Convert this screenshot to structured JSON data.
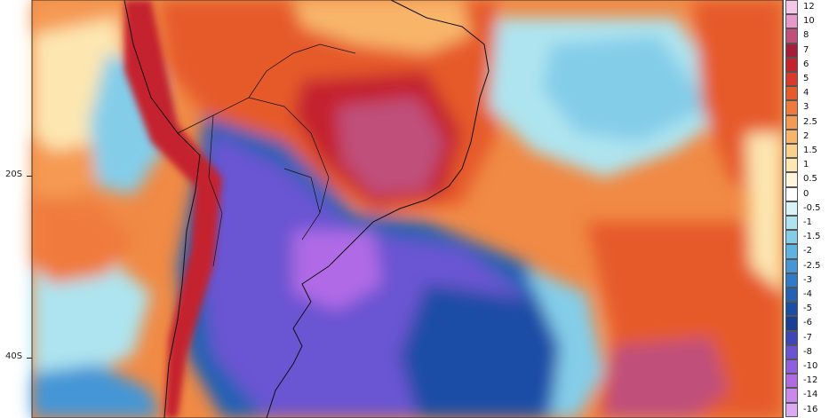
{
  "map": {
    "lat_labels": [
      "20S",
      "40S"
    ]
  },
  "legend": {
    "entries": [
      {
        "label": "12",
        "color": "#f6c6e8"
      },
      {
        "label": "10",
        "color": "#e79ac9"
      },
      {
        "label": "8",
        "color": "#c0507a"
      },
      {
        "label": "7",
        "color": "#a41e3a"
      },
      {
        "label": "6",
        "color": "#c4222d"
      },
      {
        "label": "5",
        "color": "#d93a2b"
      },
      {
        "label": "4",
        "color": "#e65a2c"
      },
      {
        "label": "3",
        "color": "#f07a3c"
      },
      {
        "label": "2.5",
        "color": "#f59a52"
      },
      {
        "label": "2",
        "color": "#f8b56a"
      },
      {
        "label": "1.5",
        "color": "#fbd08a"
      },
      {
        "label": "1",
        "color": "#fde6b0"
      },
      {
        "label": "0.5",
        "color": "#fff5dc"
      },
      {
        "label": "0",
        "color": "#ffffff"
      },
      {
        "label": "-0.5",
        "color": "#d9f3f7"
      },
      {
        "label": "-1",
        "color": "#aee4ef"
      },
      {
        "label": "-1.5",
        "color": "#84cde9"
      },
      {
        "label": "-2",
        "color": "#5fb3e2"
      },
      {
        "label": "-2.5",
        "color": "#4596d6"
      },
      {
        "label": "-3",
        "color": "#2f7bc7"
      },
      {
        "label": "-4",
        "color": "#2461b5"
      },
      {
        "label": "-5",
        "color": "#1a4ea6"
      },
      {
        "label": "-6",
        "color": "#1a3f95"
      },
      {
        "label": "-7",
        "color": "#3f46b8"
      },
      {
        "label": "-8",
        "color": "#6a54d2"
      },
      {
        "label": "-10",
        "color": "#8f5fe0"
      },
      {
        "label": "-12",
        "color": "#b06ae6"
      },
      {
        "label": "-14",
        "color": "#c988ee"
      },
      {
        "label": "-16",
        "color": "#dcaaf4"
      }
    ]
  }
}
